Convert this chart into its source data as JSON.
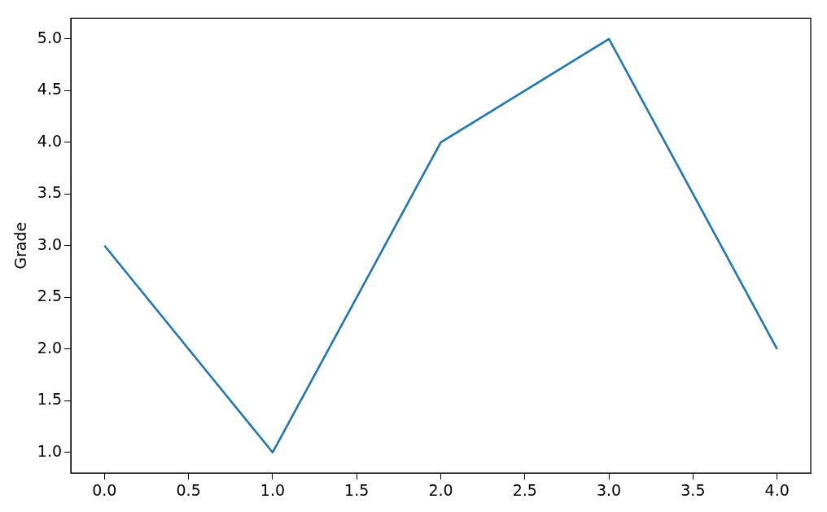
{
  "chart_data": {
    "type": "line",
    "ylabel": "Grade",
    "x": [
      0,
      1,
      2,
      3,
      4
    ],
    "series": [
      {
        "color": "#1f77b4",
        "values": [
          3,
          1,
          4,
          5,
          2
        ]
      }
    ],
    "xlim": [
      -0.2,
      4.2
    ],
    "ylim": [
      0.8,
      5.2
    ],
    "xticks": [
      {
        "value": 0,
        "label": "0.0"
      },
      {
        "value": 0.5,
        "label": "0.5"
      },
      {
        "value": 1,
        "label": "1.0"
      },
      {
        "value": 1.5,
        "label": "1.5"
      },
      {
        "value": 2,
        "label": "2.0"
      },
      {
        "value": 2.5,
        "label": "2.5"
      },
      {
        "value": 3,
        "label": "3.0"
      },
      {
        "value": 3.5,
        "label": "3.5"
      },
      {
        "value": 4,
        "label": "4.0"
      }
    ],
    "yticks": [
      {
        "value": 1,
        "label": "1.0"
      },
      {
        "value": 1.5,
        "label": "1.5"
      },
      {
        "value": 2,
        "label": "2.0"
      },
      {
        "value": 2.5,
        "label": "2.5"
      },
      {
        "value": 3,
        "label": "3.0"
      },
      {
        "value": 3.5,
        "label": "3.5"
      },
      {
        "value": 4,
        "label": "4.0"
      },
      {
        "value": 4.5,
        "label": "4.5"
      },
      {
        "value": 5,
        "label": "5.0"
      }
    ],
    "grid": false,
    "legend": false,
    "marker": "none",
    "line_style": "solid"
  }
}
